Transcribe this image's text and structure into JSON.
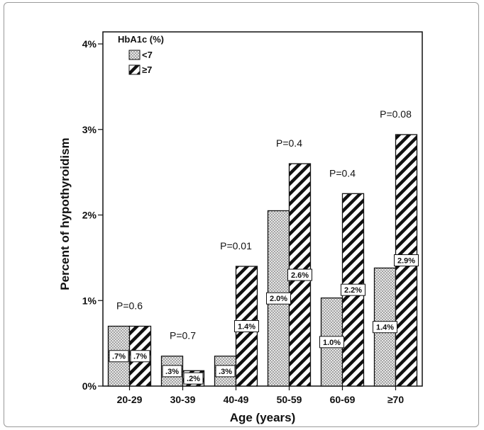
{
  "chart_data": {
    "type": "bar",
    "xlabel": "Age (years)",
    "ylabel": "Percent of hypothyroidism",
    "ylim": [
      0,
      4
    ],
    "yticks": [
      {
        "value": 0,
        "label": "0%"
      },
      {
        "value": 1,
        "label": "1%"
      },
      {
        "value": 2,
        "label": "2%"
      },
      {
        "value": 3,
        "label": "3%"
      },
      {
        "value": 4,
        "label": "4%"
      }
    ],
    "categories": [
      "20-29",
      "30-39",
      "40-49",
      "50-59",
      "60-69",
      "≥70"
    ],
    "legend": {
      "title": "HbA1c (%)",
      "placement": "top-left"
    },
    "series": [
      {
        "name": "<7",
        "pattern": "dots",
        "values": [
          0.7,
          0.35,
          0.35,
          2.05,
          1.03,
          1.38
        ],
        "labels": [
          ".7%",
          ".3%",
          ".3%",
          "2.0%",
          "1.0%",
          "1.4%"
        ]
      },
      {
        "name": "≥7",
        "pattern": "hatch",
        "values": [
          0.7,
          0.18,
          1.4,
          2.6,
          2.25,
          2.94
        ],
        "labels": [
          ".7%",
          ".2%",
          "1.4%",
          "2.6%",
          "2.2%",
          "2.9%"
        ]
      }
    ],
    "p_values": [
      "P=0.6",
      "P=0.7",
      "P=0.01",
      "P=0.4",
      "P=0.4",
      "P=0.08"
    ],
    "grid": false,
    "colors": {
      "bar_stroke": "#111111",
      "dot_fill": "#d9d9d9",
      "hatch_line": "#111111",
      "background": "#ffffff"
    }
  }
}
